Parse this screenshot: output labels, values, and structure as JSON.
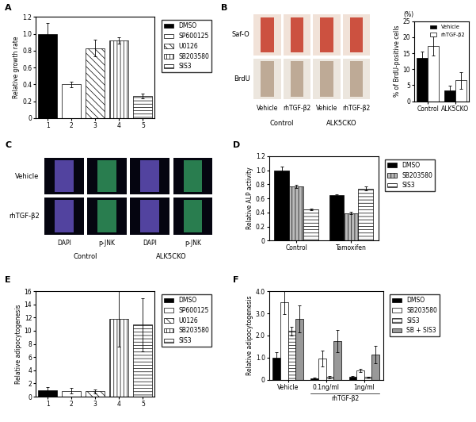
{
  "chart_data": [
    {
      "type": "bar",
      "title": "A",
      "ylabel": "Relative growth rate",
      "categories": [
        "1",
        "2",
        "3",
        "4",
        "5"
      ],
      "series": [
        {
          "name": "DMSO",
          "color": "#000000",
          "values": [
            1.0,
            null,
            null,
            null,
            null
          ],
          "errors": [
            0.13,
            null,
            null,
            null,
            null
          ]
        },
        {
          "name": "SP600125",
          "color": "#ffffff",
          "values": [
            null,
            0.4,
            null,
            null,
            null
          ],
          "errors": [
            null,
            0.03,
            null,
            null,
            null
          ]
        },
        {
          "name": "U0126",
          "color": "#ffffff",
          "values": [
            null,
            null,
            0.83,
            null,
            null
          ],
          "errors": [
            null,
            null,
            0.1,
            null,
            null
          ]
        },
        {
          "name": "SB203580",
          "color": "#ffffff",
          "values": [
            null,
            null,
            null,
            0.92,
            null
          ],
          "errors": [
            null,
            null,
            null,
            0.04,
            null
          ]
        },
        {
          "name": "SIS3",
          "color": "#ffffff",
          "values": [
            null,
            null,
            null,
            null,
            0.26
          ],
          "errors": [
            null,
            null,
            null,
            null,
            0.03
          ]
        }
      ],
      "ylim": [
        0,
        1.2
      ],
      "yticks": [
        0,
        0.2,
        0.4,
        0.6,
        0.8,
        {
          "value": 1.0,
          "label": "1.0"
        },
        1.2
      ],
      "legend": "upper left"
    },
    {
      "type": "bar",
      "ylabel": "% of BrdU-positive cells",
      "annotations": [
        "(%)"
      ],
      "categories": [
        "Control",
        "ALK5CKO"
      ],
      "series": [
        {
          "name": "Vehicle",
          "color": "#000000",
          "values": [
            13.5,
            3.3
          ],
          "errors": [
            2.0,
            1.5
          ]
        },
        {
          "name": "rhTGF-β2",
          "color": "#ffffff",
          "values": [
            17.2,
            6.5
          ],
          "errors": [
            3.0,
            2.5
          ]
        }
      ],
      "ylim": [
        0,
        25
      ],
      "yticks": [
        0,
        5,
        10,
        15,
        20,
        25
      ],
      "legend": "upper right"
    },
    {
      "type": "bar",
      "title": "D",
      "ylabel": "Relative ALP activity",
      "categories": [
        "Control",
        "Tamoxifen"
      ],
      "series": [
        {
          "name": "DMSO",
          "color": "#000000",
          "values": [
            1.0,
            0.64
          ],
          "errors": [
            0.05,
            0.02
          ]
        },
        {
          "name": "SB203580",
          "color": "#bbbbbb",
          "values": [
            0.77,
            0.39
          ],
          "errors": [
            0.02,
            0.02
          ]
        },
        {
          "name": "SIS3",
          "color": "#ffffff",
          "values": [
            0.44,
            0.74
          ],
          "errors": [
            0.01,
            0.03
          ]
        }
      ],
      "ylim": [
        0,
        1.2
      ],
      "yticks": [
        0,
        0.2,
        0.4,
        0.6,
        0.8,
        {
          "value": 1.0,
          "label": "1.0"
        },
        1.2
      ],
      "legend": "upper left"
    },
    {
      "type": "bar",
      "title": "E",
      "ylabel": "Relative adipocytogenesis",
      "categories": [
        "1",
        "2",
        "3",
        "4",
        "5"
      ],
      "series": [
        {
          "name": "DMSO",
          "color": "#000000",
          "values": [
            1.0,
            null,
            null,
            null,
            null
          ],
          "errors": [
            0.4,
            null,
            null,
            null,
            null
          ]
        },
        {
          "name": "SP600125",
          "color": "#ffffff",
          "values": [
            null,
            0.9,
            null,
            null,
            null
          ],
          "errors": [
            null,
            0.4,
            null,
            null,
            null
          ]
        },
        {
          "name": "U0126",
          "color": "#ffffff",
          "values": [
            null,
            null,
            0.8,
            null,
            null
          ],
          "errors": [
            null,
            null,
            0.3,
            null,
            null
          ]
        },
        {
          "name": "SB203580",
          "color": "#ffffff",
          "values": [
            null,
            null,
            null,
            11.8,
            null
          ],
          "errors": [
            null,
            null,
            null,
            4.2,
            null
          ]
        },
        {
          "name": "SIS3",
          "color": "#ffffff",
          "values": [
            null,
            null,
            null,
            null,
            10.9
          ],
          "errors": [
            null,
            null,
            null,
            null,
            4.0
          ]
        }
      ],
      "ylim": [
        0,
        16
      ],
      "yticks": [
        0,
        2,
        4,
        6,
        8,
        10,
        12,
        14,
        16
      ],
      "legend": "upper left"
    },
    {
      "type": "bar",
      "title": "F",
      "ylabel": "Relative adipocytogenesis",
      "annotations": [
        "rhTGF-β2"
      ],
      "categories": [
        "Vehicle",
        "0.1ng/ml",
        "1ng/ml"
      ],
      "series": [
        {
          "name": "DMSO",
          "color": "#000000",
          "values": [
            1.0,
            0.07,
            0.12
          ],
          "errors": [
            0.25,
            0.03,
            0.05
          ]
        },
        {
          "name": "SB203580",
          "color": "#ffffff",
          "values": [
            3.5,
            0.95,
            0.42
          ],
          "errors": [
            0.55,
            0.35,
            0.06
          ]
        },
        {
          "name": "SIS3",
          "color": "#ffffff",
          "values": [
            2.2,
            0.12,
            0.12
          ],
          "errors": [
            0.2,
            0.05,
            0.03
          ]
        },
        {
          "name": "SB + SIS3",
          "color": "#999999",
          "values": [
            2.75,
            1.75,
            1.15
          ],
          "errors": [
            0.6,
            0.5,
            0.4
          ]
        }
      ],
      "ylim": [
        0,
        4.0
      ],
      "yticks": [
        0,
        {
          "value": 1.0,
          "label": "1.0"
        },
        {
          "value": 2.0,
          "label": "2.0"
        },
        {
          "value": 3.0,
          "label": "3.0"
        },
        {
          "value": 4.0,
          "label": "4.0"
        }
      ],
      "legend": "upper left"
    }
  ],
  "image_panels": [
    {
      "title": "B",
      "row_labels": [
        "Saf-O",
        "BrdU"
      ],
      "column_labels": [
        "Vehicle",
        "rhTGF-β2",
        "Vehicle",
        "rhTGF-β2"
      ],
      "group_labels": [
        "Control",
        "ALK5CKO"
      ]
    },
    {
      "title": "C",
      "row_labels": [
        "Vehicle",
        "rhTGF-β2"
      ],
      "column_labels": [
        "DAPI",
        "p-JNK",
        "DAPI",
        "p-JNK"
      ],
      "group_labels": [
        "Control",
        "ALK5CKO"
      ]
    }
  ]
}
